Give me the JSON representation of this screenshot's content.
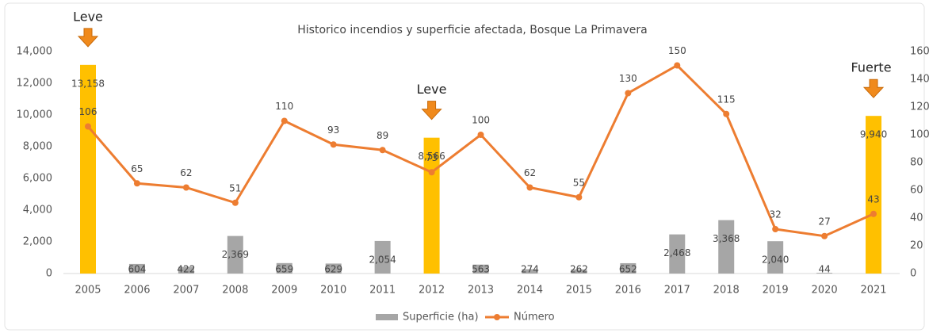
{
  "chart_data": {
    "type": "bar-line",
    "title": "Historico incendios y superficie afectada, Bosque La Primavera",
    "categories": [
      "2005",
      "2006",
      "2007",
      "2008",
      "2009",
      "2010",
      "2011",
      "2012",
      "2013",
      "2014",
      "2015",
      "2016",
      "2017",
      "2018",
      "2019",
      "2020",
      "2021"
    ],
    "series": [
      {
        "name": "Superficie (ha)",
        "type": "bar",
        "color": "#a6a6a6",
        "colors": [
          "#ffc000",
          "#a6a6a6",
          "#a6a6a6",
          "#a6a6a6",
          "#a6a6a6",
          "#a6a6a6",
          "#a6a6a6",
          "#ffc000",
          "#a6a6a6",
          "#a6a6a6",
          "#a6a6a6",
          "#a6a6a6",
          "#a6a6a6",
          "#a6a6a6",
          "#a6a6a6",
          "#a6a6a6",
          "#ffc000"
        ],
        "values": [
          13158,
          604,
          422,
          2369,
          659,
          629,
          2054,
          8566,
          563,
          274,
          262,
          652,
          2468,
          3368,
          2040,
          44,
          9940
        ],
        "value_labels": [
          "13,158",
          "604",
          "422",
          "2,369",
          "659",
          "629",
          "2,054",
          "8,566",
          "563",
          "274",
          "262",
          "652",
          "2,468",
          "3,368",
          "2,040",
          "44",
          "9,940"
        ]
      },
      {
        "name": "Número",
        "type": "line",
        "axis": "y2",
        "color": "#ed7d31",
        "values": [
          106,
          65,
          62,
          51,
          110,
          93,
          89,
          73,
          100,
          62,
          55,
          130,
          150,
          115,
          32,
          27,
          43
        ]
      }
    ],
    "ylim": [
      0,
      14000
    ],
    "yticks": [
      0,
      {
        "value": 2000,
        "label": "2,000"
      },
      {
        "value": 4000,
        "label": "4,000"
      },
      {
        "value": 6000,
        "label": "6,000"
      },
      {
        "value": 8000,
        "label": "8,000"
      },
      {
        "value": 10000,
        "label": "10,000"
      },
      {
        "value": 12000,
        "label": "12,000"
      },
      {
        "value": 14000,
        "label": "14,000"
      }
    ],
    "y2lim": [
      0,
      160
    ],
    "y2ticks": [
      0,
      20,
      40,
      60,
      80,
      100,
      120,
      140,
      160
    ],
    "annotations": [
      {
        "text": "Leve",
        "x": "2005"
      },
      {
        "text": "Leve",
        "x": "2012"
      },
      {
        "text": "Fuerte",
        "x": "2021"
      }
    ],
    "legend": "bottom"
  }
}
